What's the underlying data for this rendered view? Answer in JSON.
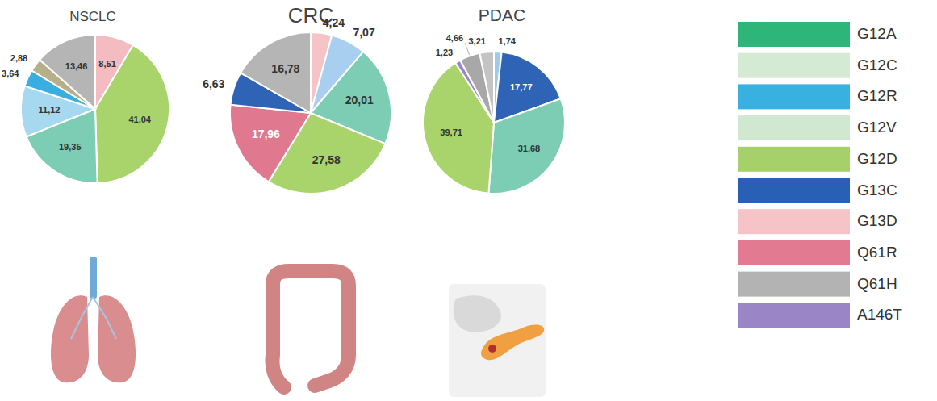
{
  "chart_data": [
    {
      "type": "pie",
      "title": "NSCLC",
      "values": [
        8.51,
        41.04,
        19.35,
        11.12,
        3.64,
        2.88,
        13.46
      ],
      "value_labels": [
        "8,51",
        "41,04",
        "19,35",
        "11,12",
        "3,64",
        "2,88",
        "13,46"
      ],
      "colors": [
        "#f4bcc0",
        "#a9d46b",
        "#7dcdb5",
        "#a6d8f0",
        "#3aaee0",
        "#b5b08a",
        "#b5b5b5"
      ],
      "data_labels": true
    },
    {
      "type": "pie",
      "title": "CRC",
      "values": [
        4.24,
        7.07,
        20.01,
        27.58,
        17.96,
        6.63,
        16.78
      ],
      "value_labels": [
        "4,24",
        "7,07",
        "20,01",
        "27,58",
        "17,96",
        "6,63",
        "16,78"
      ],
      "colors": [
        "#f6c3c6",
        "#a9cff0",
        "#7dcdb5",
        "#a9d46b",
        "#e07890",
        "#2f63b5",
        "#b5b5b5"
      ],
      "data_labels": true
    },
    {
      "type": "pie",
      "title": "PDAC",
      "values": [
        1.74,
        17.77,
        31.68,
        39.71,
        1.23,
        4.66,
        3.21
      ],
      "value_labels": [
        "1,74",
        "17,77",
        "31,68",
        "39,71",
        "1,23",
        "4,66",
        "3,21"
      ],
      "colors": [
        "#9dcbea",
        "#2f63b5",
        "#7dcdb5",
        "#a9d46b",
        "#9a86c6",
        "#a8a8a8",
        "#c4c4c4"
      ],
      "data_labels": true
    }
  ],
  "key": {
    "labels": [
      "G12A",
      "G12C",
      "G12R",
      "G12V",
      "G12D",
      "G13C",
      "G13D",
      "Q61R",
      "Q61H",
      "A146T"
    ],
    "colors": [
      "#2db57a",
      "#d4ead2",
      "#38b1e0",
      "#cfe8cf",
      "#a6d06a",
      "#2760b5",
      "#f6c3c6",
      "#e27b92",
      "#b3b3b3",
      "#9a86c6"
    ]
  }
}
